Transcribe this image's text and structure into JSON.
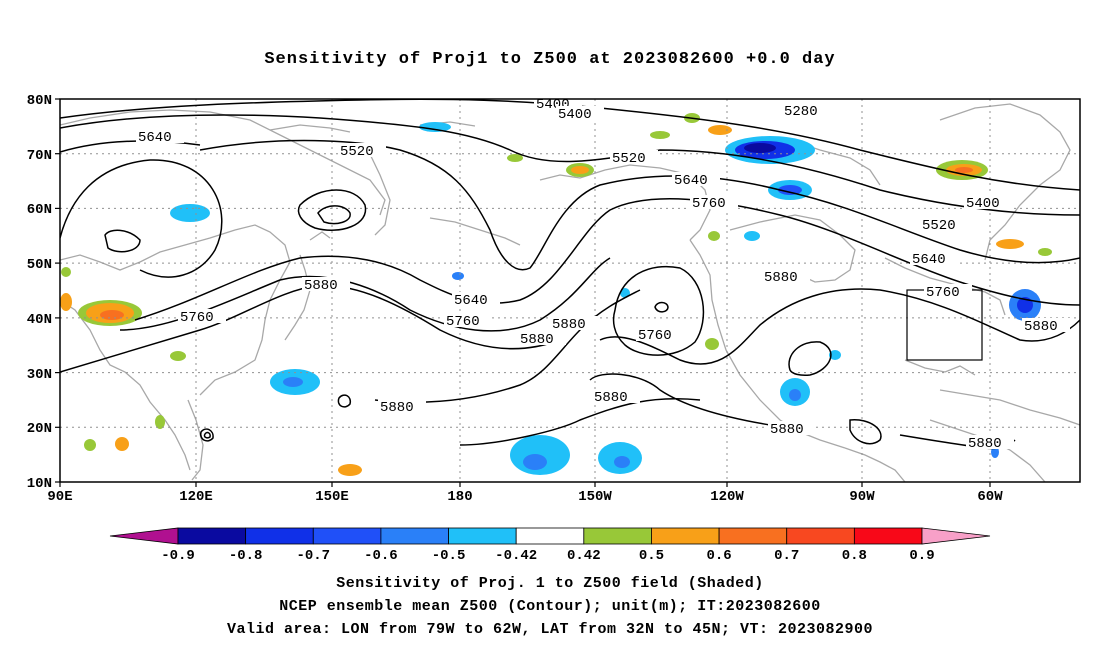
{
  "title": "Sensitivity of Proj1 to Z500 at 2023082600 +0.0 day",
  "lat_ticks": [
    "80N",
    "70N",
    "60N",
    "50N",
    "40N",
    "30N",
    "20N",
    "10N"
  ],
  "lon_ticks": [
    "90E",
    "120E",
    "150E",
    "180",
    "150W",
    "120W",
    "90W",
    "60W"
  ],
  "contour_labels": {
    "c5400a": "5400",
    "c5400b": "5400",
    "c5400c": "5400",
    "c5280": "5280",
    "c5640a": "5640",
    "c5640b": "5640",
    "c5640c": "5640",
    "c5640d": "5640",
    "c5520a": "5520",
    "c5520b": "5520",
    "c5520c": "5520",
    "c5760a": "5760",
    "c5760b": "5760",
    "c5760c": "5760",
    "c5760d": "5760",
    "c5880a": "5880",
    "c5880b": "5880",
    "c5880c": "5880",
    "c5880d": "5880",
    "c5880e": "5880",
    "c5880f": "5880",
    "c5880g": "5880",
    "c5880h": "5880",
    "c5880i": "5880"
  },
  "colorbar": {
    "labels": [
      "-0.9",
      "-0.8",
      "-0.7",
      "-0.6",
      "-0.5",
      "-0.42",
      "0.42",
      "0.5",
      "0.6",
      "0.7",
      "0.8",
      "0.9"
    ],
    "colors": [
      "#b01090",
      "#0a0aa0",
      "#1030e8",
      "#2050f8",
      "#2a80f8",
      "#20c0f8",
      "#ffffff",
      "#98c838",
      "#f8a018",
      "#f87020",
      "#f84820",
      "#f80818",
      "#f8a0c8"
    ]
  },
  "caption": {
    "line1": "Sensitivity of Proj. 1 to Z500 field (Shaded)",
    "line2": "NCEP ensemble mean Z500 (Contour); unit(m); IT:2023082600",
    "line3": "Valid area: LON from 79W to 62W, LAT from 32N to 45N; VT: 2023082900"
  }
}
